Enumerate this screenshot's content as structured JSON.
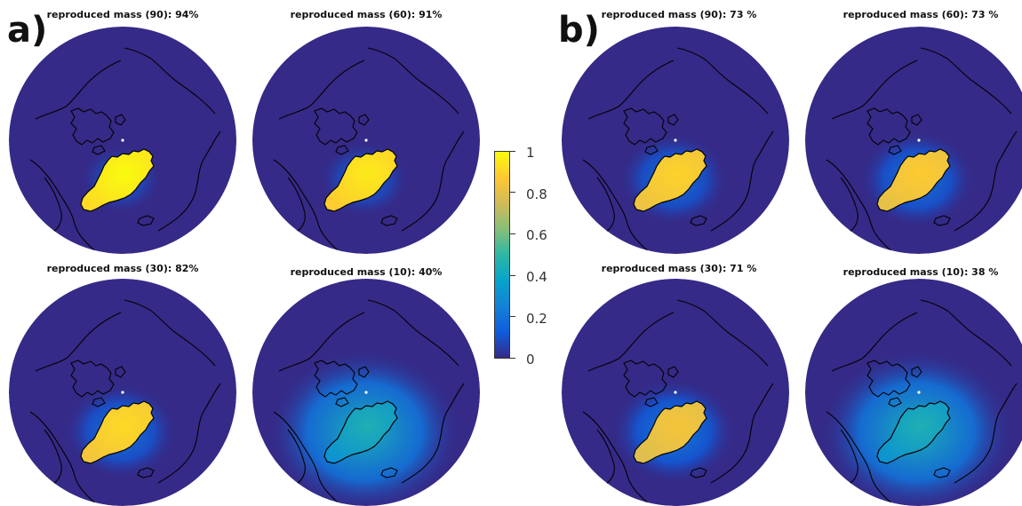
{
  "panels": [
    {
      "letter": "a)",
      "maps": [
        {
          "title": "reproduced mass (90): 94%",
          "peak": 1.0,
          "spread": 0.05
        },
        {
          "title": "reproduced mass (60): 91%",
          "peak": 0.96,
          "spread": 0.1
        },
        {
          "title": "reproduced mass (30): 82%",
          "peak": 0.92,
          "spread": 0.25
        },
        {
          "title": "reproduced mass (10): 40%",
          "peak": 0.45,
          "spread": 0.75
        }
      ]
    },
    {
      "letter": "b)",
      "maps": [
        {
          "title": "reproduced mass (90): 73 %",
          "peak": 0.9,
          "spread": 0.22
        },
        {
          "title": "reproduced mass (60): 73 %",
          "peak": 0.88,
          "spread": 0.26
        },
        {
          "title": "reproduced mass (30): 71 %",
          "peak": 0.85,
          "spread": 0.32
        },
        {
          "title": "reproduced mass (10): 38 %",
          "peak": 0.45,
          "spread": 0.75
        }
      ]
    }
  ],
  "colorbar": {
    "ticks": [
      "1",
      "0.8",
      "0.6",
      "0.4",
      "0.2",
      "0"
    ],
    "range": [
      0,
      1
    ],
    "colors": [
      "#352a87",
      "#0f5cdd",
      "#1481d6",
      "#06a4ca",
      "#2eb7a4",
      "#87bf77",
      "#d1bb59",
      "#fec832",
      "#f9fb0e"
    ]
  },
  "map_colors": {
    "ocean_background": "#352a87",
    "coastline": "#000000",
    "pole_marker": "#ffffff"
  }
}
